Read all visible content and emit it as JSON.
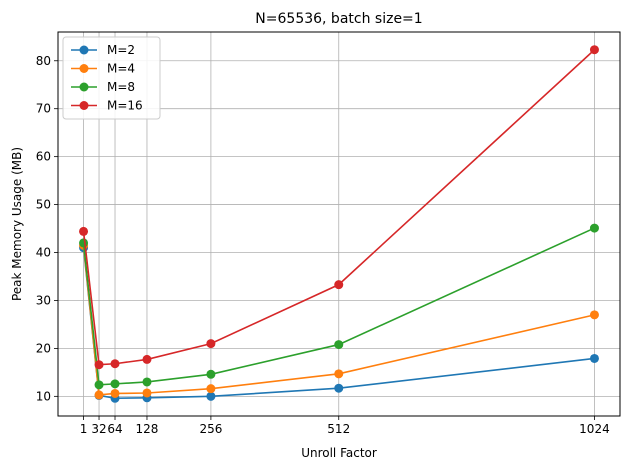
{
  "chart_data": {
    "type": "line",
    "title": "N=65536, batch size=1",
    "xlabel": "Unroll Factor",
    "ylabel": "Peak Memory Usage (MB)",
    "x": [
      1,
      32,
      64,
      128,
      256,
      512,
      1024
    ],
    "xticks": [
      1,
      32,
      64,
      128,
      256,
      512,
      1024
    ],
    "xtick_labels": [
      "1",
      "32",
      "64",
      "128",
      "256",
      "512",
      "1024"
    ],
    "xlim": [
      -50.15,
      1075.15
    ],
    "yticks": [
      10,
      20,
      30,
      40,
      50,
      60,
      70,
      80
    ],
    "ylim": [
      5.9,
      86.0
    ],
    "grid": true,
    "legend_position": "upper-left",
    "series": [
      {
        "name": "M=2",
        "color": "#1f77b4",
        "values": [
          41.0,
          10.2,
          9.6,
          9.7,
          10.0,
          11.7,
          17.9
        ]
      },
      {
        "name": "M=4",
        "color": "#ff7f0e",
        "values": [
          41.5,
          10.3,
          10.6,
          10.7,
          11.6,
          14.7,
          27.0
        ]
      },
      {
        "name": "M=8",
        "color": "#2ca02c",
        "values": [
          42.0,
          12.4,
          12.6,
          13.0,
          14.6,
          20.8,
          45.1
        ]
      },
      {
        "name": "M=16",
        "color": "#d62728",
        "values": [
          44.4,
          16.6,
          16.8,
          17.7,
          21.0,
          33.3,
          82.3
        ]
      }
    ]
  }
}
